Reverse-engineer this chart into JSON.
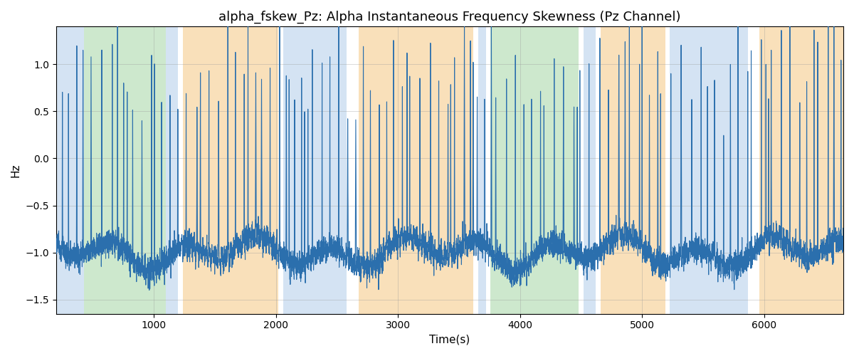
{
  "title": "alpha_fskew_Pz: Alpha Instantaneous Frequency Skewness (Pz Channel)",
  "xlabel": "Time(s)",
  "ylabel": "Hz",
  "ylim": [
    -1.65,
    1.4
  ],
  "xlim": [
    200,
    6650
  ],
  "line_color": "#2b6fad",
  "line_width": 0.8,
  "grid_color": "#999999",
  "grid_alpha": 0.5,
  "bg_color": "#ffffff",
  "title_fontsize": 13,
  "label_fontsize": 11,
  "tick_fontsize": 10,
  "bands": [
    {
      "xmin": 200,
      "xmax": 430,
      "color": "#aac8e8",
      "alpha": 0.5
    },
    {
      "xmin": 430,
      "xmax": 1100,
      "color": "#90cc90",
      "alpha": 0.45
    },
    {
      "xmin": 1100,
      "xmax": 1200,
      "color": "#aac8e8",
      "alpha": 0.5
    },
    {
      "xmin": 1200,
      "xmax": 1240,
      "color": "#ffffff",
      "alpha": 1.0
    },
    {
      "xmin": 1240,
      "xmax": 2020,
      "color": "#f5c882",
      "alpha": 0.55
    },
    {
      "xmin": 2020,
      "xmax": 2060,
      "color": "#ffffff",
      "alpha": 1.0
    },
    {
      "xmin": 2060,
      "xmax": 2580,
      "color": "#aac8e8",
      "alpha": 0.5
    },
    {
      "xmin": 2580,
      "xmax": 2680,
      "color": "#ffffff",
      "alpha": 1.0
    },
    {
      "xmin": 2680,
      "xmax": 3620,
      "color": "#f5c882",
      "alpha": 0.55
    },
    {
      "xmin": 3620,
      "xmax": 3660,
      "color": "#ffffff",
      "alpha": 1.0
    },
    {
      "xmin": 3660,
      "xmax": 3720,
      "color": "#aac8e8",
      "alpha": 0.5
    },
    {
      "xmin": 3720,
      "xmax": 3760,
      "color": "#ffffff",
      "alpha": 1.0
    },
    {
      "xmin": 3760,
      "xmax": 4480,
      "color": "#90cc90",
      "alpha": 0.45
    },
    {
      "xmin": 4480,
      "xmax": 4520,
      "color": "#ffffff",
      "alpha": 1.0
    },
    {
      "xmin": 4520,
      "xmax": 4620,
      "color": "#aac8e8",
      "alpha": 0.5
    },
    {
      "xmin": 4620,
      "xmax": 4660,
      "color": "#ffffff",
      "alpha": 1.0
    },
    {
      "xmin": 4660,
      "xmax": 5190,
      "color": "#f5c882",
      "alpha": 0.55
    },
    {
      "xmin": 5190,
      "xmax": 5230,
      "color": "#ffffff",
      "alpha": 1.0
    },
    {
      "xmin": 5230,
      "xmax": 5870,
      "color": "#aac8e8",
      "alpha": 0.5
    },
    {
      "xmin": 5870,
      "xmax": 5960,
      "color": "#ffffff",
      "alpha": 1.0
    },
    {
      "xmin": 5960,
      "xmax": 6650,
      "color": "#f5c882",
      "alpha": 0.55
    }
  ],
  "seed": 123
}
